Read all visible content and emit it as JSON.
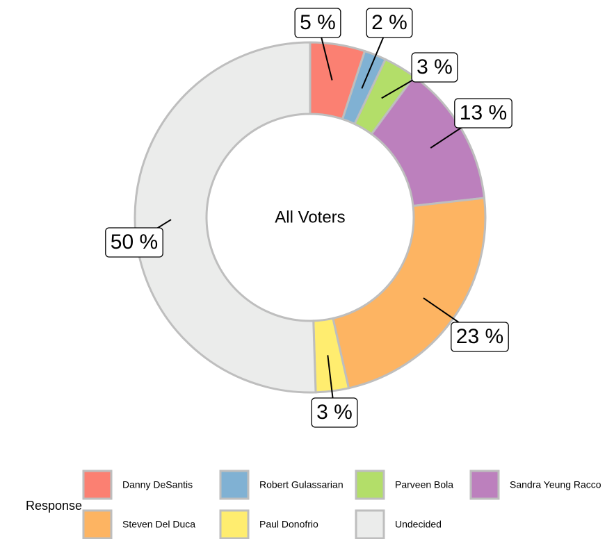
{
  "chart_data": {
    "type": "donut",
    "center_label": "All Voters",
    "categories": [
      "Danny DeSantis",
      "Robert Gulassarian",
      "Parveen Bola",
      "Sandra Yeung Racco",
      "Steven Del Duca",
      "Paul Donofrio",
      "Undecided"
    ],
    "values": [
      5,
      2,
      3,
      13,
      23,
      3,
      50
    ],
    "value_labels": [
      "5 %",
      "2 %",
      "3 %",
      "13 %",
      "23 %",
      "3 %",
      "50 %"
    ],
    "colors": [
      "#fb8072",
      "#80b1d3",
      "#b3de69",
      "#bc80bd",
      "#fdb462",
      "#ffed6f",
      "#ebeceb"
    ],
    "legend_title": "Response",
    "legend_position": "bottom"
  }
}
